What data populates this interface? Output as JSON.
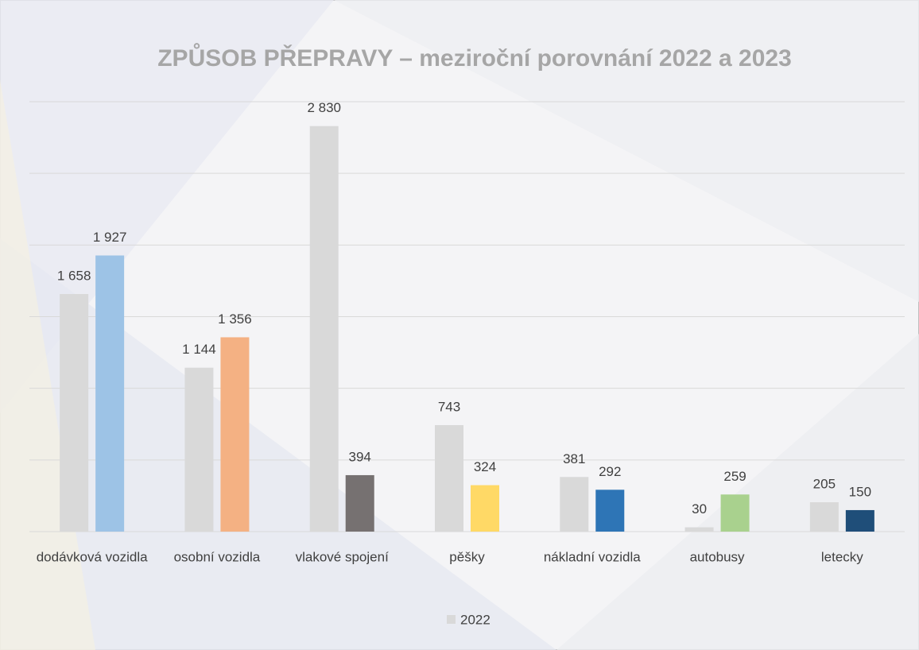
{
  "chart_data": {
    "type": "bar",
    "title": "ZPŮSOB PŘEPRAVY – meziroční porovnání 2022 a 2023",
    "categories": [
      "dodávková vozidla",
      "osobní vozidla",
      "vlakové spojení",
      "pěšky",
      "nákladní vozidla",
      "autobusy",
      "letecky"
    ],
    "series": [
      {
        "name": "2022",
        "color": "#d9d9d9",
        "values": [
          1658,
          1144,
          2830,
          743,
          381,
          30,
          205
        ],
        "value_labels": [
          "1 658",
          "1 144",
          "2 830",
          "743",
          "381",
          "30",
          "205"
        ]
      },
      {
        "colors": [
          "#9dc3e6",
          "#f4b183",
          "#767171",
          "#ffd966",
          "#2e75b6",
          "#a9d18e",
          "#1f4e79"
        ],
        "values": [
          1927,
          1356,
          394,
          324,
          292,
          259,
          150
        ],
        "value_labels": [
          "1 927",
          "1 356",
          "394",
          "324",
          "292",
          "259",
          "150"
        ]
      }
    ],
    "ylim": [
      0,
      3000
    ],
    "yticks": [
      0,
      500,
      1000,
      1500,
      2000,
      2500,
      3000
    ],
    "ytick_labels": false,
    "grid": true,
    "legend": "bottom"
  }
}
